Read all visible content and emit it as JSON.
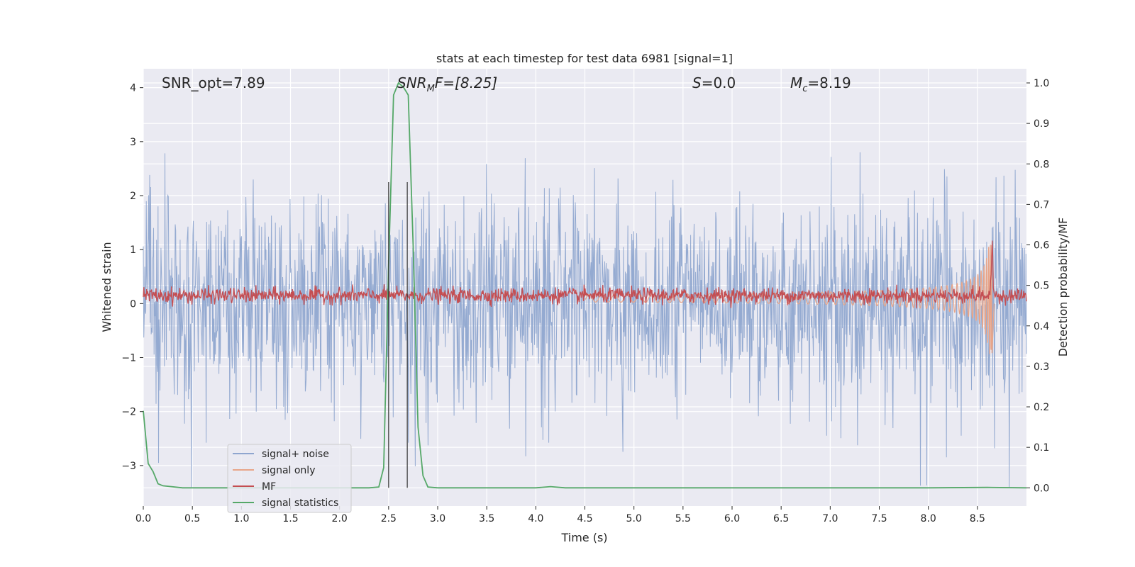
{
  "chart_data": {
    "type": "line",
    "title": "stats at each timestep for test data 6981 [signal=1]",
    "xlabel": "Time (s)",
    "ylabel": "Whitened strain",
    "y2label": "Detection probability/MF",
    "xlim": [
      0.0,
      9.0
    ],
    "ylim": [
      -3.75,
      4.35
    ],
    "y2lim": [
      -0.045,
      1.035
    ],
    "x_ticks": [
      0.0,
      0.5,
      1.0,
      1.5,
      2.0,
      2.5,
      3.0,
      3.5,
      4.0,
      4.5,
      5.0,
      5.5,
      6.0,
      6.5,
      7.0,
      7.5,
      8.0,
      8.5
    ],
    "x_tick_labels": [
      "0.0",
      "0.5",
      "1.0",
      "1.5",
      "2.0",
      "2.5",
      "3.0",
      "3.5",
      "4.0",
      "4.5",
      "5.0",
      "5.5",
      "6.0",
      "6.5",
      "7.0",
      "7.5",
      "8.0",
      "8.5"
    ],
    "y_ticks": [
      -3,
      -2,
      -1,
      0,
      1,
      2,
      3,
      4
    ],
    "y_tick_labels": [
      "−3",
      "−2",
      "−1",
      "0",
      "1",
      "2",
      "3",
      "4"
    ],
    "y2_ticks": [
      0.0,
      0.1,
      0.2,
      0.3,
      0.4,
      0.5,
      0.6,
      0.7,
      0.8,
      0.9,
      1.0
    ],
    "y2_tick_labels": [
      "0.0",
      "0.1",
      "0.2",
      "0.3",
      "0.4",
      "0.5",
      "0.6",
      "0.7",
      "0.8",
      "0.9",
      "1.0"
    ],
    "grid": true,
    "legend_position": "bottom-left",
    "annotations": {
      "snr_opt": "SNR_opt=7.89",
      "snr_mf_main": "SNR",
      "snr_mf_sub": "M",
      "snr_mf_rest": "F=[8.25]",
      "s_main": "S",
      "s_rest": "=0.0",
      "mc_main": "M",
      "mc_sub": "c",
      "mc_rest": "=8.19"
    },
    "vertical_lines": [
      2.5,
      2.69
    ],
    "series": [
      {
        "name": "signal+ noise",
        "color": "#8fa6cf",
        "axis": "left",
        "noise_amplitude": 1.0,
        "spike_max": 4.0,
        "spike_min": -3.4
      },
      {
        "name": "signal only",
        "color": "#e8a589",
        "axis": "left",
        "chirp_end": 8.65,
        "peak_amplitude": 1.15
      },
      {
        "name": "MF",
        "color": "#c44e52",
        "axis": "left",
        "baseline": 0.15,
        "peak_time": 8.65,
        "peak_value": 1.0
      },
      {
        "name": "signal statistics",
        "color": "#55a868",
        "axis": "right",
        "x": [
          0.0,
          0.05,
          0.1,
          0.15,
          0.2,
          0.4,
          0.6,
          1.0,
          1.5,
          2.0,
          2.3,
          2.4,
          2.45,
          2.5,
          2.55,
          2.6,
          2.65,
          2.7,
          2.75,
          2.8,
          2.85,
          2.9,
          3.0,
          3.5,
          4.0,
          4.15,
          4.3,
          5.0,
          6.0,
          7.0,
          8.0,
          8.6,
          9.0
        ],
        "y": [
          0.19,
          0.06,
          0.04,
          0.01,
          0.005,
          0.0,
          0.0,
          0.0,
          0.0,
          0.0,
          0.0,
          0.002,
          0.05,
          0.55,
          0.97,
          1.0,
          0.99,
          0.97,
          0.6,
          0.15,
          0.03,
          0.002,
          0.0,
          0.0,
          0.0,
          0.003,
          0.0,
          0.0,
          0.0,
          0.0,
          0.0,
          0.001,
          0.0
        ]
      }
    ]
  }
}
